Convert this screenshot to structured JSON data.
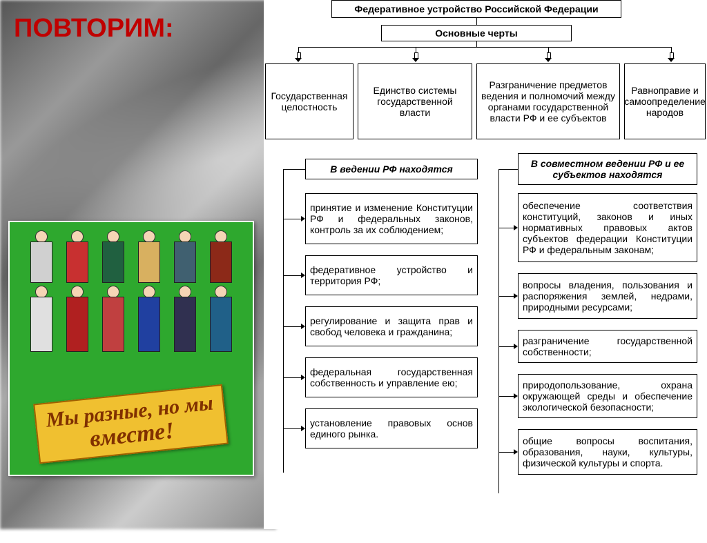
{
  "slide": {
    "title": "ПОВТОРИМ:",
    "title_color": "#c00000"
  },
  "poster": {
    "ribbon_line1": "Мы разные, но мы",
    "ribbon_line2": "вместе!",
    "ribbon_bg": "#f0c030",
    "ribbon_text_color": "#803000",
    "figures": [
      {
        "body": "#d0d0d0"
      },
      {
        "body": "#c83030"
      },
      {
        "body": "#206040"
      },
      {
        "body": "#d8b060"
      },
      {
        "body": "#406070"
      },
      {
        "body": "#8c2918"
      },
      {
        "body": "#e0e0e0"
      },
      {
        "body": "#b02020"
      },
      {
        "body": "#c04040"
      },
      {
        "body": "#2040a0"
      },
      {
        "body": "#303050"
      },
      {
        "body": "#206088"
      }
    ]
  },
  "diagram": {
    "main_title": "Федеративное устройство Российской Федерации",
    "sub_title": "Основные черты",
    "features": [
      "Государственная целостность",
      "Единство системы государственной власти",
      "Разграничение предметов ведения и полномочий между органами государственной власти РФ и ее субъектов",
      "Равноправие и самоопределение народов"
    ],
    "left_header": "В ведении РФ находятся",
    "right_header": "В совместном ведении РФ и ее субъектов находятся",
    "left_items": [
      "принятие и изменение Конституции РФ и федеральных законов, контроль за их соблюдением;",
      "федеративное устройство и территория РФ;",
      "регулирование и защита прав и свобод человека и гражданина;",
      "федеральная государственная собственность и управление ею;",
      "установление правовых основ единого рынка."
    ],
    "right_items": [
      "обеспечение соответствия конституций, законов и иных нормативных правовых актов субъектов федерации Конституции РФ и федеральным законам;",
      "вопросы владения, пользования и распоряжения землей, недрами, природными ресурсами;",
      "разграничение государственной собственности;",
      "природопользование, охрана окружающей среды и обеспечение экологической безопасности;",
      "общие вопросы воспитания, образования, науки, культуры, физической культуры и спорта."
    ]
  },
  "style": {
    "diagram_fontsize": 14,
    "title_fontsize": 38,
    "box_border": "#000000",
    "bg": "#ffffff"
  }
}
